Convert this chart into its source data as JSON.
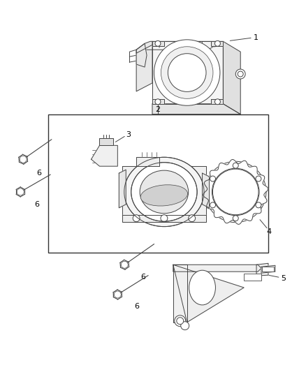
{
  "background_color": "#ffffff",
  "line_color": "#444444",
  "label_color": "#000000",
  "fig_width": 4.38,
  "fig_height": 5.33,
  "dpi": 100
}
